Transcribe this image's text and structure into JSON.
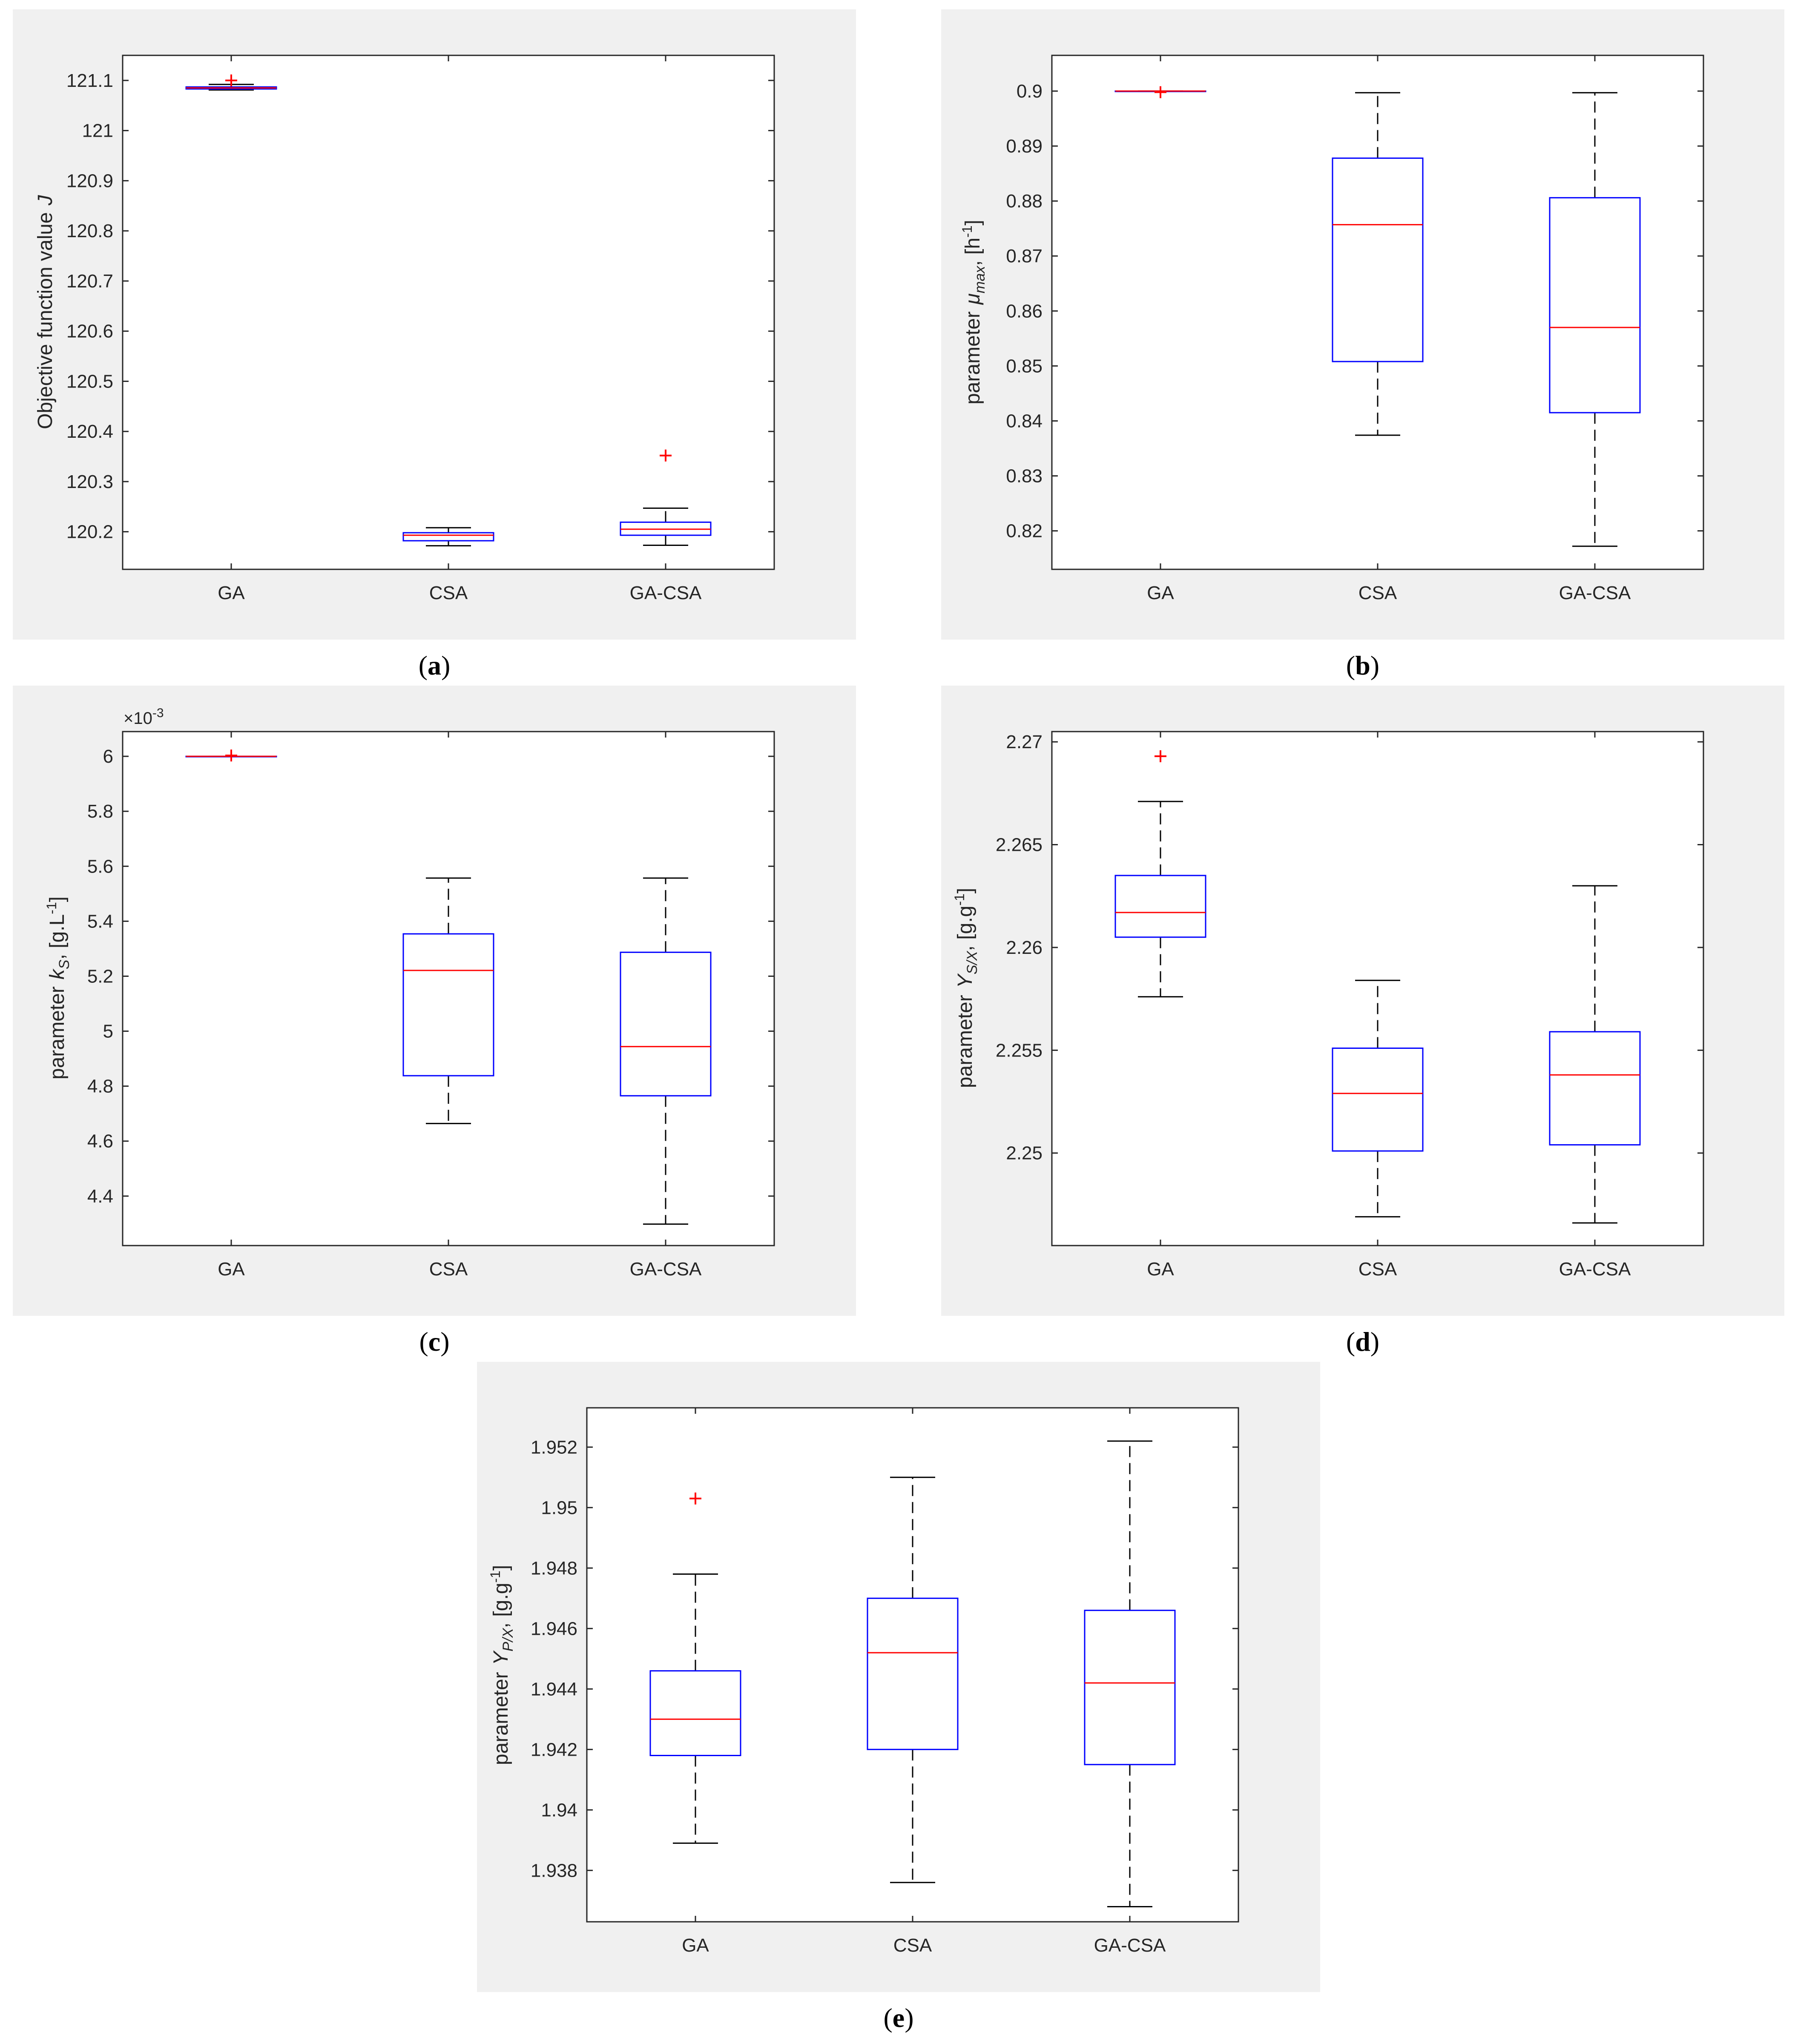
{
  "colors": {
    "panel_bg": "#f0f0f0",
    "axes_bg": "#ffffff",
    "box": "#0000ff",
    "median": "#ff0000",
    "whisker": "#000000",
    "outlier": "#ff0000",
    "axis": "#262626"
  },
  "panel_labels": {
    "a_open": "(",
    "a": "a",
    "a_close": ")",
    "b_open": "(",
    "b": "b",
    "b_close": ")",
    "c_open": "(",
    "c": "c",
    "c_close": ")",
    "d_open": "(",
    "d": "d",
    "d_close": ")",
    "e_open": "(",
    "e": "e",
    "e_close": ")"
  },
  "chart_data": [
    {
      "panel": "a",
      "type": "boxplot",
      "categories": [
        "GA",
        "CSA",
        "GA-CSA"
      ],
      "ylabel_main": "Objective function value",
      "ylabel_var": "J",
      "ylim": [
        120.125,
        121.15
      ],
      "yticks": [
        120.2,
        120.3,
        120.4,
        120.5,
        120.6,
        120.7,
        120.8,
        120.9,
        121,
        121.1
      ],
      "ytick_labels": [
        "120.2",
        "120.3",
        "120.4",
        "120.5",
        "120.6",
        "120.7",
        "120.8",
        "120.9",
        "121",
        "121.1"
      ],
      "boxes": [
        {
          "min": 121.081,
          "q1": 121.083,
          "median": 121.085,
          "q3": 121.087,
          "max": 121.092,
          "outliers": [
            121.1
          ]
        },
        {
          "min": 120.172,
          "q1": 120.182,
          "median": 120.193,
          "q3": 120.198,
          "max": 120.208,
          "outliers": []
        },
        {
          "min": 120.173,
          "q1": 120.193,
          "median": 120.205,
          "q3": 120.219,
          "max": 120.247,
          "outliers": [
            120.352
          ]
        }
      ]
    },
    {
      "panel": "b",
      "type": "boxplot",
      "categories": [
        "GA",
        "CSA",
        "GA-CSA"
      ],
      "ylabel_main": "parameter",
      "ylabel_sym": "μ",
      "ylabel_sub": "max",
      "ylabel_rest": ", [h",
      "ylabel_sup": "-1",
      "ylabel_end": "]",
      "ylim": [
        0.813,
        0.9065
      ],
      "yticks": [
        0.82,
        0.83,
        0.84,
        0.85,
        0.86,
        0.87,
        0.88,
        0.89,
        0.9
      ],
      "ytick_labels": [
        "0.82",
        "0.83",
        "0.84",
        "0.85",
        "0.86",
        "0.87",
        "0.88",
        "0.89",
        "0.9"
      ],
      "boxes": [
        {
          "min": 0.89998,
          "q1": 0.89999,
          "median": 0.9,
          "q3": 0.9,
          "max": 0.9,
          "outliers": [
            0.8998
          ]
        },
        {
          "min": 0.8374,
          "q1": 0.8508,
          "median": 0.8757,
          "q3": 0.8878,
          "max": 0.8997,
          "outliers": []
        },
        {
          "min": 0.8172,
          "q1": 0.8415,
          "median": 0.857,
          "q3": 0.8806,
          "max": 0.8997,
          "outliers": []
        }
      ]
    },
    {
      "panel": "c",
      "type": "boxplot",
      "categories": [
        "GA",
        "CSA",
        "GA-CSA"
      ],
      "ylabel_main": "parameter",
      "ylabel_sym": "k",
      "ylabel_sub": "S",
      "ylabel_rest": ", [g.L",
      "ylabel_sup": "-1",
      "ylabel_end": "]",
      "multiplier_base": "×10",
      "multiplier_exp": "-3",
      "ylim": [
        4.22,
        6.09
      ],
      "yticks": [
        4.4,
        4.6,
        4.8,
        5,
        5.2,
        5.4,
        5.6,
        5.8,
        6
      ],
      "ytick_labels": [
        "4.4",
        "4.6",
        "4.8",
        "5",
        "5.2",
        "5.4",
        "5.6",
        "5.8",
        "6"
      ],
      "boxes": [
        {
          "min": 5.999,
          "q1": 5.9995,
          "median": 6.0,
          "q3": 6.0,
          "max": 6.0,
          "outliers": [
            6.003
          ]
        },
        {
          "min": 4.664,
          "q1": 4.838,
          "median": 5.221,
          "q3": 5.354,
          "max": 5.557,
          "outliers": []
        },
        {
          "min": 4.298,
          "q1": 4.765,
          "median": 4.944,
          "q3": 5.287,
          "max": 5.557,
          "outliers": []
        }
      ]
    },
    {
      "panel": "d",
      "type": "boxplot",
      "categories": [
        "GA",
        "CSA",
        "GA-CSA"
      ],
      "ylabel_main": "parameter",
      "ylabel_sym": "Y",
      "ylabel_sub": "S/X",
      "ylabel_rest": ", [g.g",
      "ylabel_sup": "-1",
      "ylabel_end": "]",
      "ylim": [
        2.2455,
        2.2705
      ],
      "yticks": [
        2.25,
        2.255,
        2.26,
        2.265,
        2.27
      ],
      "ytick_labels": [
        "2.25",
        "2.255",
        "2.26",
        "2.265",
        "2.27"
      ],
      "boxes": [
        {
          "min": 2.2576,
          "q1": 2.2605,
          "median": 2.2617,
          "q3": 2.2635,
          "max": 2.2671,
          "outliers": [
            2.2693
          ]
        },
        {
          "min": 2.2469,
          "q1": 2.2501,
          "median": 2.2529,
          "q3": 2.2551,
          "max": 2.2584,
          "outliers": []
        },
        {
          "min": 2.2466,
          "q1": 2.2504,
          "median": 2.2538,
          "q3": 2.2559,
          "max": 2.263,
          "outliers": []
        }
      ]
    },
    {
      "panel": "e",
      "type": "boxplot",
      "categories": [
        "GA",
        "CSA",
        "GA-CSA"
      ],
      "ylabel_main": "parameter",
      "ylabel_sym": "Y",
      "ylabel_sub": "P/X",
      "ylabel_rest": ", [g.g",
      "ylabel_sup": "-1",
      "ylabel_end": "]",
      "ylim": [
        1.9363,
        1.9533
      ],
      "yticks": [
        1.938,
        1.94,
        1.942,
        1.944,
        1.946,
        1.948,
        1.95,
        1.952
      ],
      "ytick_labels": [
        "1.938",
        "1.94",
        "1.942",
        "1.944",
        "1.946",
        "1.948",
        "1.95",
        "1.952"
      ],
      "boxes": [
        {
          "min": 1.9389,
          "q1": 1.9418,
          "median": 1.943,
          "q3": 1.9446,
          "max": 1.9478,
          "outliers": [
            1.9503
          ]
        },
        {
          "min": 1.9376,
          "q1": 1.942,
          "median": 1.9452,
          "q3": 1.947,
          "max": 1.951,
          "outliers": []
        },
        {
          "min": 1.9368,
          "q1": 1.9415,
          "median": 1.9442,
          "q3": 1.9466,
          "max": 1.9522,
          "outliers": []
        }
      ]
    }
  ]
}
